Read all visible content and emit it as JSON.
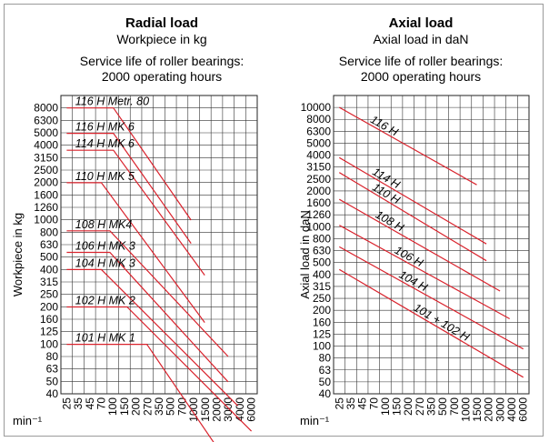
{
  "x_unit": "min⁻¹",
  "chart_data": [
    {
      "type": "line",
      "title": "Radial load",
      "subtitle": "Workpiece in kg",
      "note_line1": "Service life of roller bearings:",
      "note_line2": "2000 operating hours",
      "ylabel": "Workpiece in kg",
      "xlabel": "min⁻¹",
      "x_scale": "log",
      "y_scale": "log",
      "x_ticks": [
        "25",
        "35",
        "45",
        "70",
        "100",
        "150",
        "200",
        "270",
        "350",
        "500",
        "700",
        "1000",
        "1500",
        "2000",
        "3000",
        "4000",
        "6000"
      ],
      "y_ticks": [
        "40",
        "50",
        "63",
        "80",
        "100",
        "125",
        "160",
        "200",
        "250",
        "315",
        "400",
        "500",
        "630",
        "800",
        "1000",
        "1260",
        "1600",
        "2000",
        "2500",
        "3150",
        "4000",
        "5000",
        "6300",
        "8000"
      ],
      "grid": true,
      "line_color": "#d9232d",
      "series": [
        {
          "name": "116 H Metr. 80",
          "points": [
            [
              25,
              8000
            ],
            [
              100,
              8000
            ],
            [
              1000,
              1000
            ]
          ]
        },
        {
          "name": "116 H MK 6",
          "points": [
            [
              25,
              5000
            ],
            [
              100,
              5000
            ],
            [
              1000,
              650
            ]
          ]
        },
        {
          "name": "114 H MK 6",
          "points": [
            [
              25,
              3650
            ],
            [
              100,
              3650
            ],
            [
              1500,
              360
            ]
          ]
        },
        {
          "name": "110 H MK 5",
          "points": [
            [
              25,
              2000
            ],
            [
              70,
              2000
            ],
            [
              1500,
              150
            ]
          ]
        },
        {
          "name": "108 H MK4",
          "points": [
            [
              25,
              820
            ],
            [
              90,
              820
            ],
            [
              3000,
              80
            ]
          ]
        },
        {
          "name": "106 H MK 3",
          "points": [
            [
              25,
              550
            ],
            [
              90,
              550
            ],
            [
              3000,
              50
            ]
          ]
        },
        {
          "name": "104 H MK 3",
          "points": [
            [
              25,
              400
            ],
            [
              70,
              400
            ],
            [
              4000,
              32
            ]
          ]
        },
        {
          "name": "102 H MK 2",
          "points": [
            [
              25,
              200
            ],
            [
              150,
              200
            ],
            [
              6000,
              20
            ]
          ]
        },
        {
          "name": "101 H MK 1",
          "points": [
            [
              25,
              100
            ],
            [
              270,
              100
            ],
            [
              3000,
              11
            ]
          ]
        }
      ]
    },
    {
      "type": "line",
      "title": "Axial load",
      "subtitle": "Axial load in daN",
      "note_line1": "Service life of roller bearings:",
      "note_line2": "2000 operating hours",
      "ylabel": "Axial load in daN",
      "xlabel": "min⁻¹",
      "x_scale": "log",
      "y_scale": "log",
      "x_ticks": [
        "25",
        "35",
        "45",
        "70",
        "100",
        "150",
        "200",
        "270",
        "350",
        "500",
        "700",
        "1000",
        "1500",
        "2000",
        "3000",
        "4000",
        "6000"
      ],
      "y_ticks": [
        "40",
        "50",
        "63",
        "80",
        "100",
        "125",
        "160",
        "200",
        "250",
        "315",
        "400",
        "500",
        "630",
        "800",
        "1000",
        "1260",
        "1600",
        "2000",
        "2500",
        "3150",
        "4000",
        "5000",
        "6300",
        "8000",
        "10000"
      ],
      "grid": true,
      "line_color": "#d9232d",
      "series": [
        {
          "name": "116 H",
          "points": [
            [
              25,
              10000
            ],
            [
              1500,
              2250
            ]
          ]
        },
        {
          "name": "114 H",
          "points": [
            [
              25,
              3800
            ],
            [
              2000,
              720
            ]
          ]
        },
        {
          "name": "110 H",
          "points": [
            [
              25,
              2850
            ],
            [
              2000,
              520
            ]
          ]
        },
        {
          "name": "108 H",
          "points": [
            [
              25,
              1700
            ],
            [
              3000,
              290
            ]
          ]
        },
        {
          "name": "106 H",
          "points": [
            [
              25,
              1030
            ],
            [
              4000,
              170
            ]
          ]
        },
        {
          "name": "104 H",
          "points": [
            [
              25,
              680
            ],
            [
              6000,
              95
            ]
          ]
        },
        {
          "name": "101 + 102 H",
          "points": [
            [
              25,
              440
            ],
            [
              6000,
              55
            ]
          ]
        }
      ]
    }
  ]
}
